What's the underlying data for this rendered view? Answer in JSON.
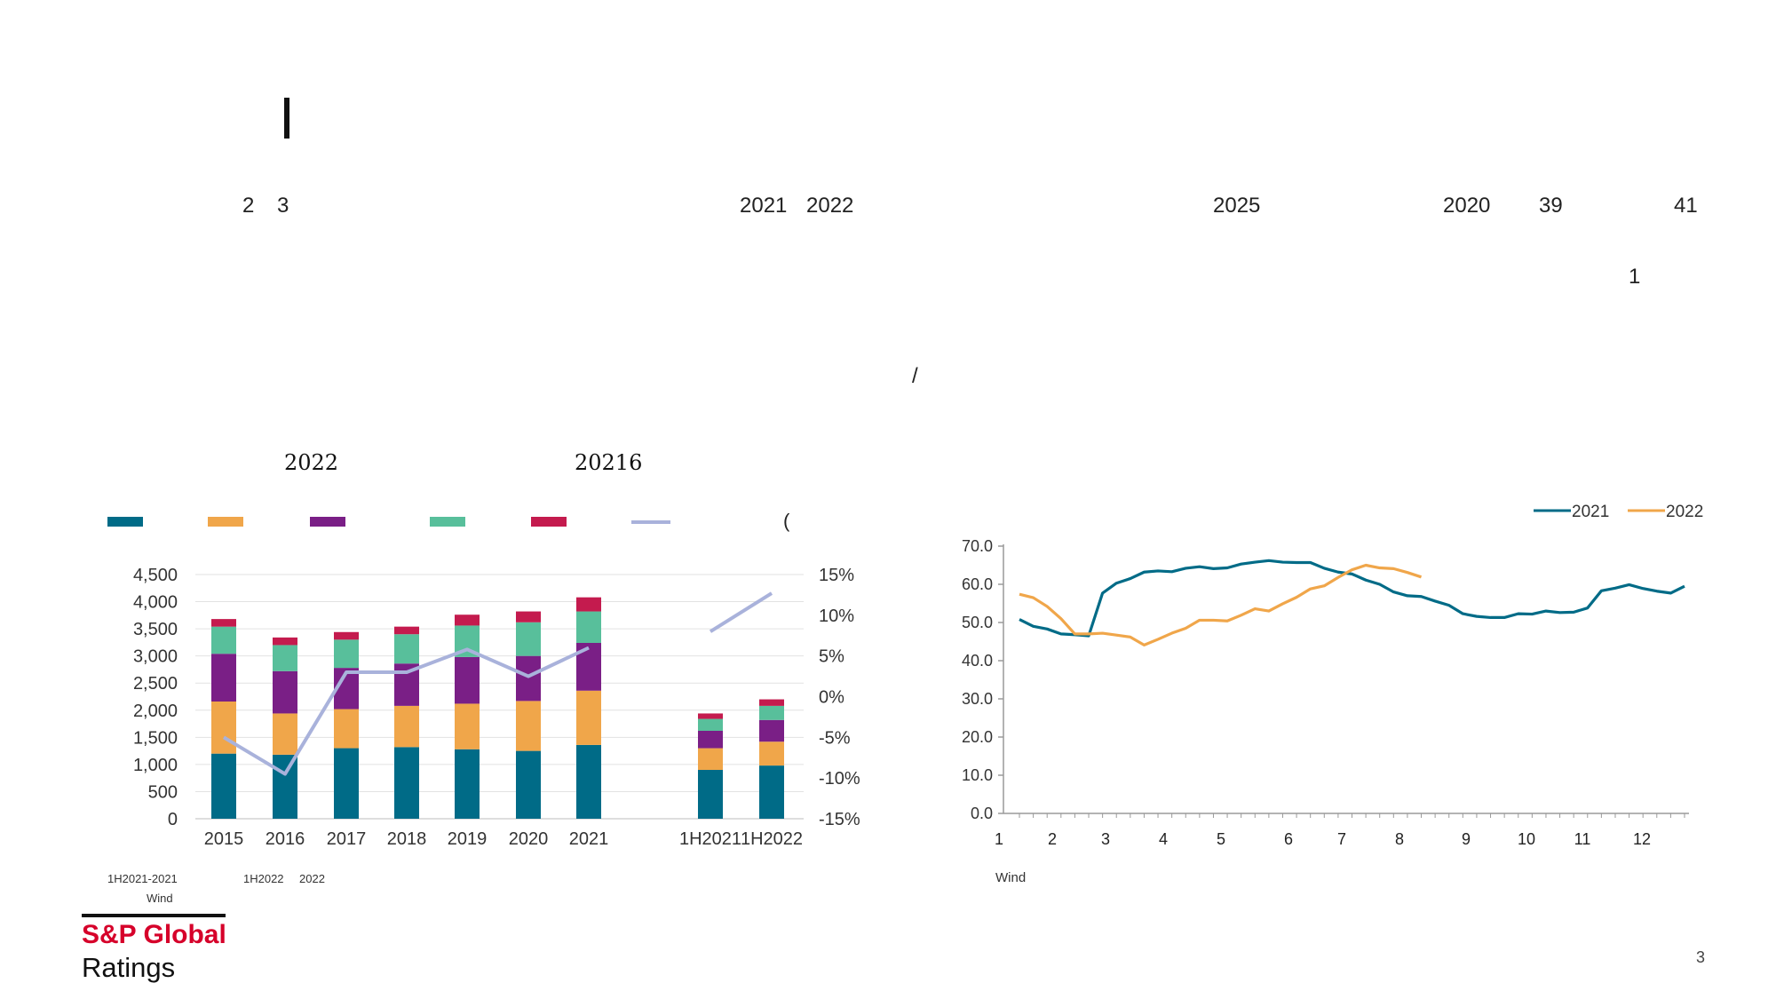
{
  "header_fragments": [
    "2",
    "3",
    "2021",
    "2022",
    "2025",
    "2020",
    "39",
    "41",
    "1",
    "/"
  ],
  "left_title_fragments": [
    "2022",
    "20216"
  ],
  "left_legend_fragment": "(",
  "left_chart_notes": [
    "1H2021-2021",
    "Wind",
    "1H2022",
    "2022"
  ],
  "right_chart_notes": [
    "Wind"
  ],
  "footer": {
    "brand_line1": "S&P Global",
    "brand_line2": "Ratings",
    "page_number": "3"
  },
  "colors": {
    "teal": "#006b87",
    "orange": "#f0a64a",
    "purple": "#7a1f86",
    "green": "#58bf9b",
    "crimson": "#c41b4e",
    "lavender": "#a9b2db"
  },
  "chart_data": [
    {
      "type": "bar",
      "stacked": true,
      "categories": [
        "2015",
        "2016",
        "2017",
        "2018",
        "2019",
        "2020",
        "2021",
        "1H2021",
        "1H2022"
      ],
      "series": [
        {
          "values": [
            1200,
            1180,
            1300,
            1320,
            1280,
            1250,
            1360,
            900,
            980
          ]
        },
        {
          "values": [
            960,
            760,
            720,
            760,
            840,
            920,
            1000,
            400,
            440
          ]
        },
        {
          "values": [
            880,
            780,
            760,
            780,
            860,
            830,
            880,
            320,
            400
          ]
        },
        {
          "values": [
            500,
            480,
            520,
            540,
            580,
            620,
            580,
            220,
            260
          ]
        },
        {
          "values": [
            140,
            140,
            140,
            140,
            200,
            200,
            260,
            100,
            120
          ]
        }
      ],
      "line_series": {
        "axis": "right",
        "values": [
          -5,
          -9.5,
          3,
          3,
          5.8,
          2.5,
          6,
          8,
          12.7
        ]
      },
      "y_left_ticks": [
        "4,500",
        "4,000",
        "3,500",
        "3,000",
        "2,500",
        "2,000",
        "1,500",
        "1,000",
        "500",
        "0"
      ],
      "y_right_ticks": [
        "15%",
        "10%",
        "5%",
        "0%",
        "-5%",
        "-10%",
        "-15%"
      ],
      "ylim": [
        0,
        4500
      ],
      "y2lim": [
        -15,
        15
      ]
    },
    {
      "type": "line",
      "x_ticks": [
        "1",
        "2",
        "3",
        "4",
        "5",
        "6",
        "7",
        "8",
        "9",
        "10",
        "11",
        "12"
      ],
      "y_ticks": [
        "70.0",
        "60.0",
        "50.0",
        "40.0",
        "30.0",
        "20.0",
        "10.0",
        "0.0"
      ],
      "ylim": [
        0,
        70
      ],
      "legend": "top-right",
      "series": [
        {
          "name": "2021",
          "values": [
            50.8,
            49,
            48.3,
            47,
            46.8,
            46.5,
            57.7,
            60.3,
            61.5,
            63.2,
            63.5,
            63.3,
            64.2,
            64.6,
            64.1,
            64.3,
            65.3,
            65.8,
            66.2,
            65.8,
            65.7,
            65.7,
            64.2,
            63.2,
            62.7,
            61.1,
            60,
            58,
            57,
            56.8,
            55.6,
            54.5,
            52.3,
            51.6,
            51.3,
            51.3,
            52.3,
            52.2,
            53,
            52.6,
            52.7,
            53.8,
            58.3,
            59,
            59.9,
            58.9,
            58.2,
            57.7,
            59.5
          ]
        },
        {
          "name": "2022",
          "values": [
            57.4,
            56.5,
            54.2,
            51,
            47,
            47,
            47.2,
            46.7,
            46.2,
            44.1,
            45.6,
            47.2,
            48.5,
            50.6,
            50.6,
            50.4,
            51.9,
            53.6,
            53,
            54.9,
            56.6,
            58.8,
            59.6,
            61.8,
            63.8,
            65,
            64.3,
            64.1,
            63.1,
            61.9
          ]
        }
      ]
    }
  ]
}
